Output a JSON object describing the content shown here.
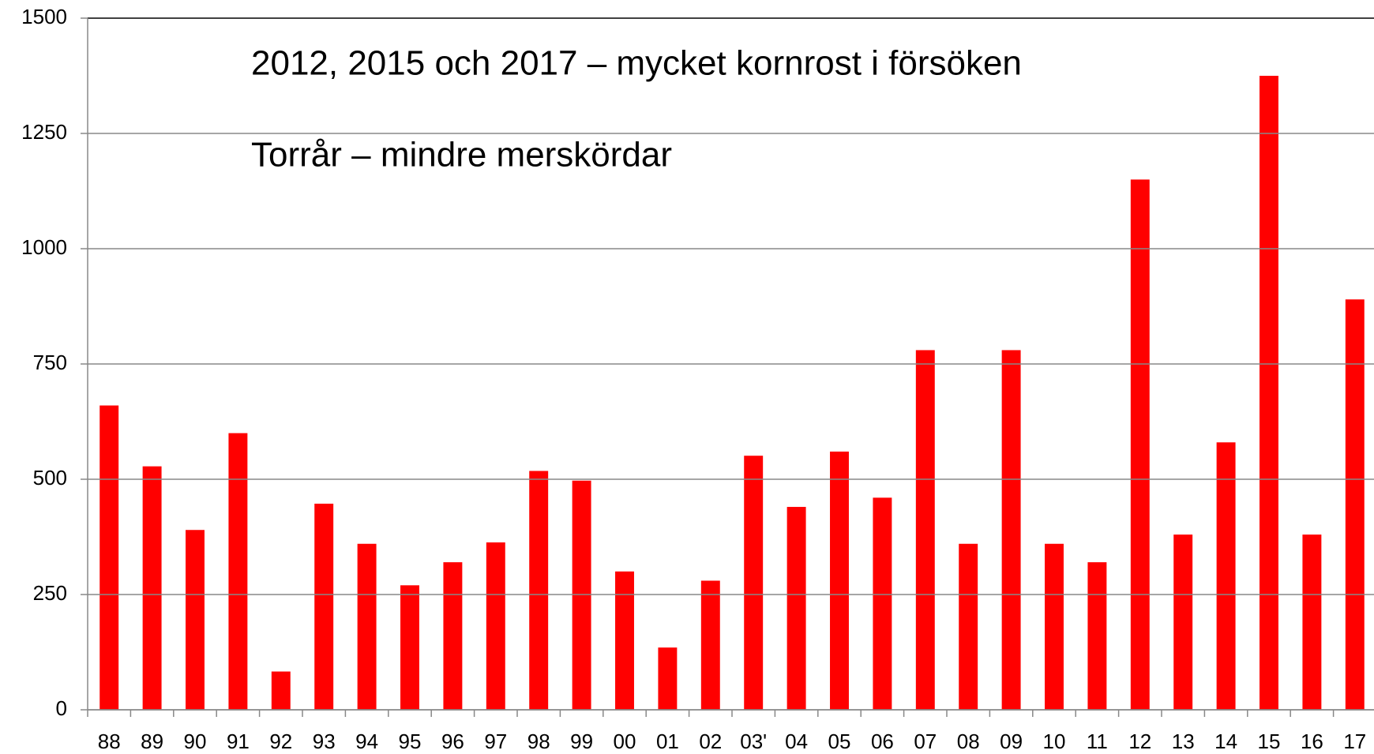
{
  "chart_data": {
    "type": "bar",
    "annotations": [
      "2012, 2015 och 2017 – mycket kornrost i försöken",
      "Torrår – mindre merskördar"
    ],
    "categories": [
      "88",
      "89",
      "90",
      "91",
      "92",
      "93",
      "94",
      "95",
      "96",
      "97",
      "98",
      "99",
      "00",
      "01",
      "02",
      "03'",
      "04",
      "05",
      "06",
      "07",
      "08",
      "09",
      "10",
      "11",
      "12",
      "13",
      "14",
      "15",
      "16",
      "17"
    ],
    "values": [
      660,
      528,
      390,
      600,
      83,
      447,
      360,
      270,
      320,
      363,
      518,
      497,
      300,
      135,
      280,
      551,
      440,
      560,
      460,
      780,
      360,
      780,
      360,
      320,
      1150,
      380,
      580,
      1375,
      380,
      890
    ],
    "color": "#ff0000",
    "ylim": [
      0,
      1500
    ],
    "yticks": [
      0,
      250,
      500,
      750,
      1000,
      1250,
      1500
    ],
    "grid": true
  }
}
